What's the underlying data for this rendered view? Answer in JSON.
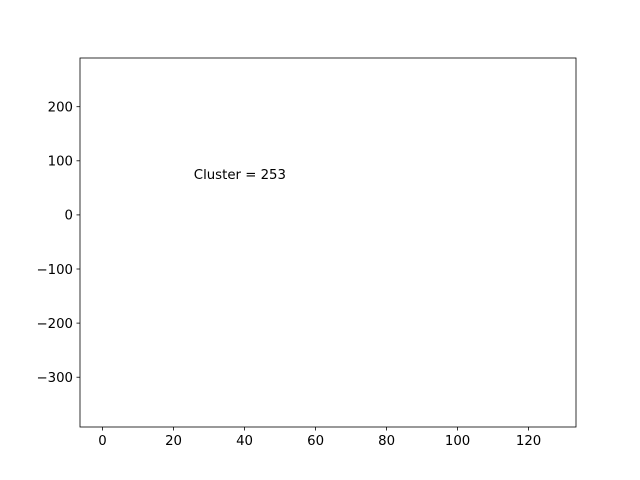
{
  "chart_data": {
    "type": "scatter",
    "title": "",
    "xlabel": "",
    "ylabel": "",
    "xlim": [
      -6.35,
      133.35
    ],
    "ylim": [
      -392,
      290
    ],
    "x_ticks": [
      0,
      20,
      40,
      60,
      80,
      100,
      120
    ],
    "y_ticks": [
      200,
      100,
      0,
      -100,
      -200,
      -300
    ],
    "x_tick_labels": [
      "0",
      "20",
      "40",
      "60",
      "80",
      "100",
      "120"
    ],
    "y_tick_labels": [
      "200",
      "100",
      "0",
      "−100",
      "−200",
      "−300"
    ],
    "grid": false,
    "series": [],
    "annotations": [
      {
        "text": "Cluster = 253",
        "x": 25.7,
        "y": 75
      }
    ]
  }
}
